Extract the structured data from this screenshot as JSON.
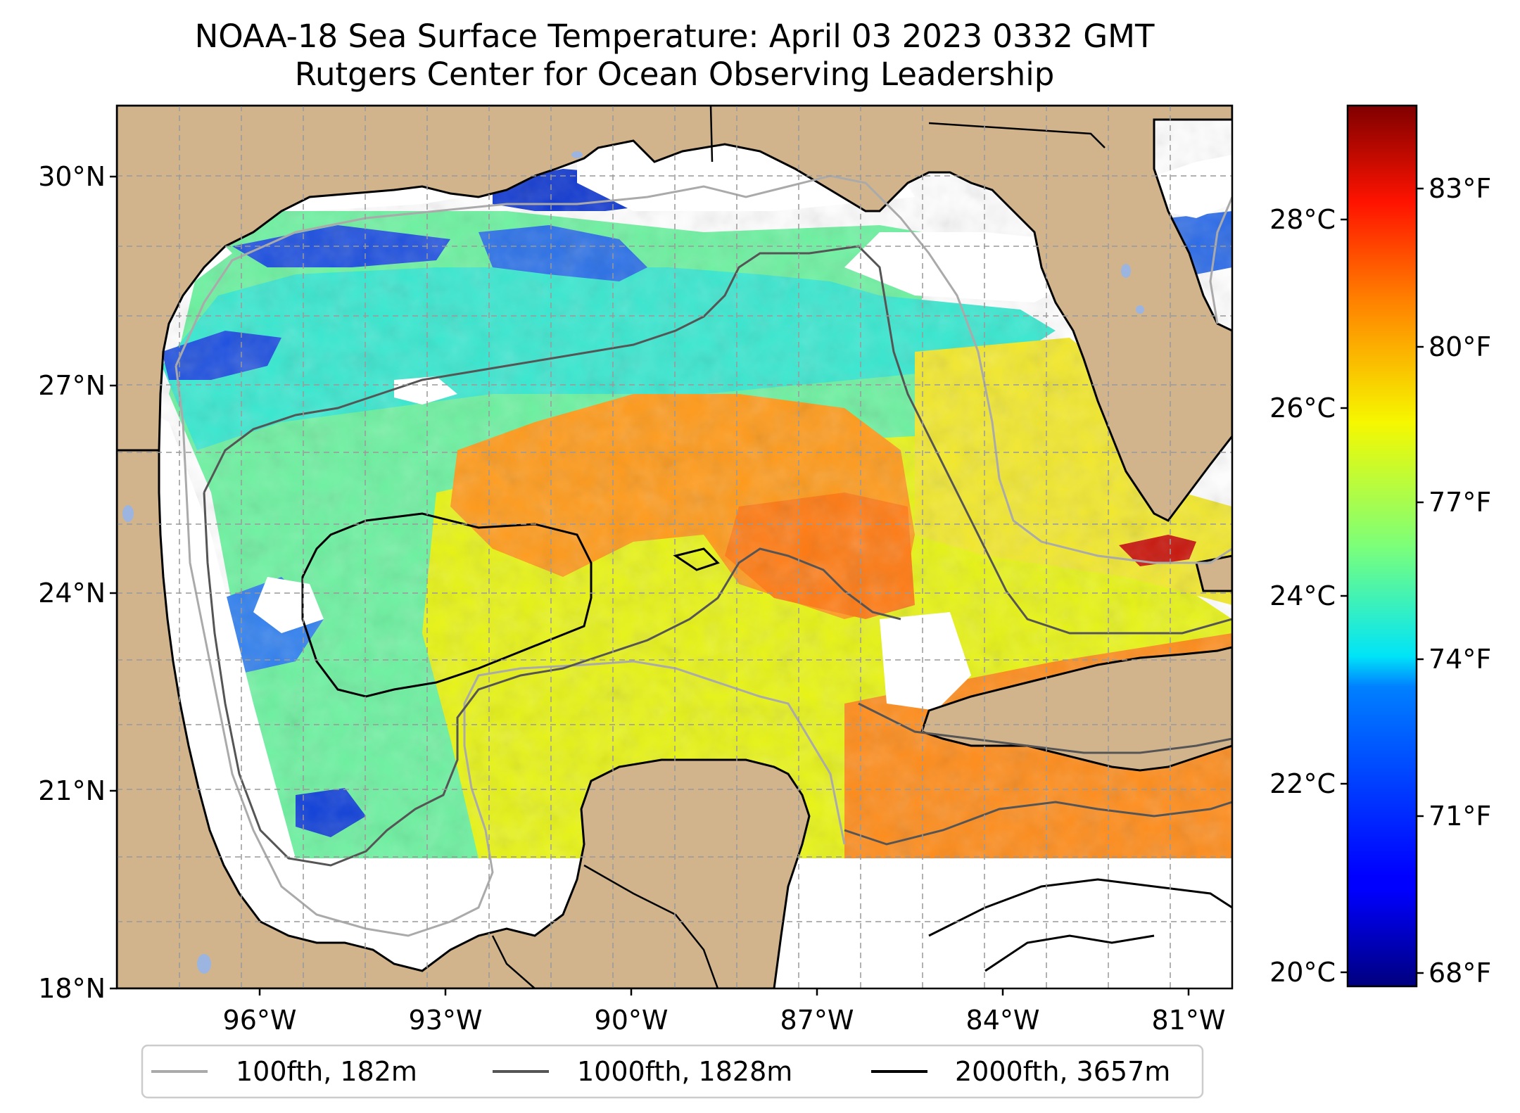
{
  "title": {
    "line1": "NOAA-18 Sea Surface Temperature: April 03 2023 0332 GMT",
    "line2": "Rutgers Center for Ocean Observing Leadership"
  },
  "map": {
    "lat_labels": [
      "30°N",
      "27°N",
      "24°N",
      "21°N",
      "18°N"
    ],
    "lon_labels": [
      "96°W",
      "93°W",
      "90°W",
      "87°W",
      "84°W",
      "81°W"
    ],
    "land_color": "#d2b48c",
    "no_data_color": "#ffffff"
  },
  "colorbar": {
    "celsius_labels": [
      "28°C",
      "26°C",
      "24°C",
      "22°C",
      "20°C"
    ],
    "fahrenheit_labels": [
      "83°F",
      "80°F",
      "77°F",
      "74°F",
      "71°F",
      "68°F"
    ],
    "colormap": "jet"
  },
  "legend": {
    "items": [
      {
        "label": "100fth, 182m",
        "color": "#aaaaaa"
      },
      {
        "label": "1000fth, 1828m",
        "color": "#555555"
      },
      {
        "label": "2000fth, 3657m",
        "color": "#000000"
      }
    ]
  }
}
